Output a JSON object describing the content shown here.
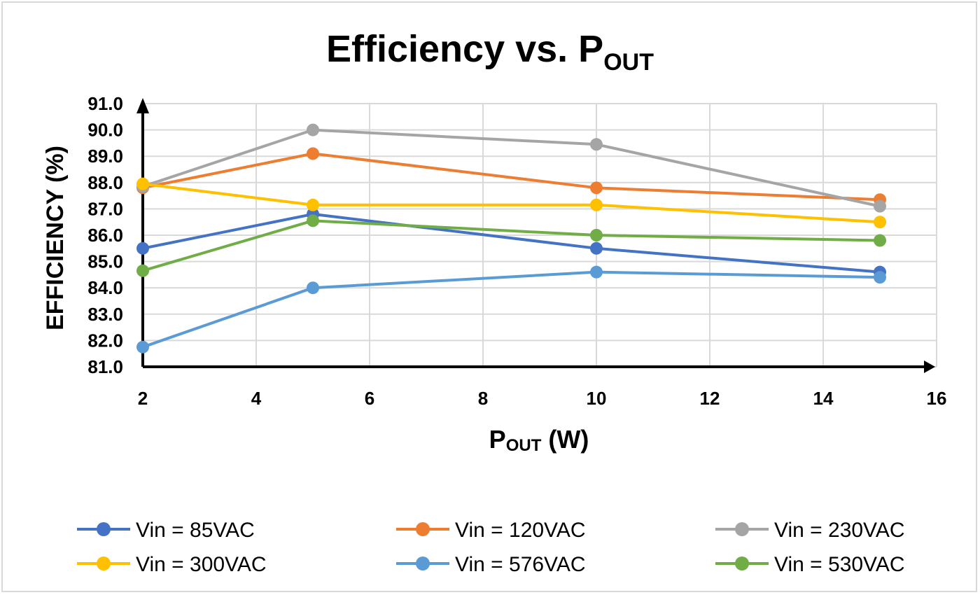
{
  "chart_data": {
    "type": "line",
    "title_main": "Efficiency vs. P",
    "title_sub": "OUT",
    "xlabel_main": "P",
    "xlabel_sub": "OUT",
    "xlabel_unit": " (W)",
    "ylabel": "EFFICIENCY  (%)",
    "xlim": [
      2,
      16
    ],
    "ylim": [
      81,
      91
    ],
    "x_ticks": [
      "2",
      "4",
      "6",
      "8",
      "10",
      "12",
      "14",
      "16"
    ],
    "y_ticks": [
      "81.0",
      "82.0",
      "83.0",
      "84.0",
      "85.0",
      "86.0",
      "87.0",
      "88.0",
      "89.0",
      "90.0",
      "91.0"
    ],
    "grid": true,
    "legend_position": "bottom",
    "x": [
      2,
      5,
      10,
      15
    ],
    "series": [
      {
        "name": "Vin = 85VAC",
        "color": "#4472c4",
        "values": [
          85.5,
          86.8,
          85.5,
          84.6
        ]
      },
      {
        "name": "Vin = 120VAC",
        "color": "#ed7d31",
        "values": [
          87.8,
          89.1,
          87.8,
          87.35
        ]
      },
      {
        "name": "Vin = 230VAC",
        "color": "#a5a5a5",
        "values": [
          87.85,
          90.0,
          89.45,
          87.1
        ]
      },
      {
        "name": "Vin = 300VAC",
        "color": "#ffc000",
        "values": [
          87.95,
          87.15,
          87.15,
          86.5
        ]
      },
      {
        "name": "Vin = 576VAC",
        "color": "#5b9bd5",
        "values": [
          81.75,
          84.0,
          84.6,
          84.4
        ]
      },
      {
        "name": "Vin = 530VAC",
        "color": "#70ad47",
        "values": [
          84.65,
          86.55,
          86.0,
          85.8
        ]
      }
    ]
  }
}
